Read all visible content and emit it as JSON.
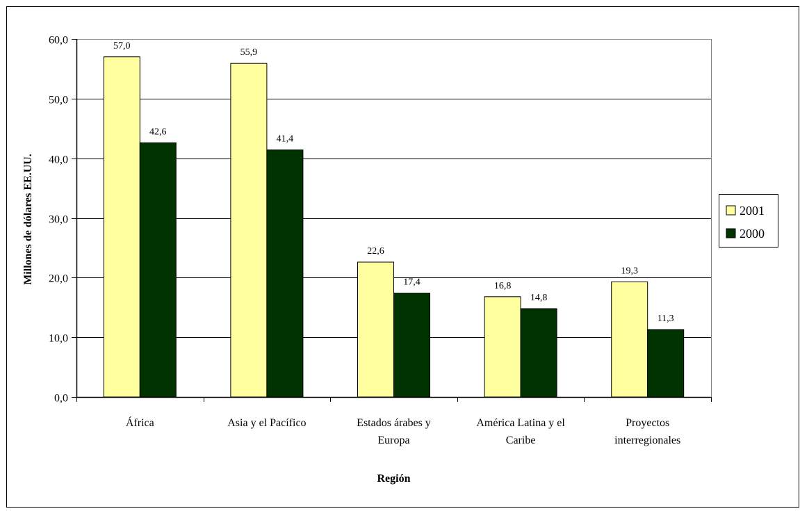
{
  "chart_data": {
    "type": "bar",
    "title": "",
    "xlabel": "Región",
    "ylabel": "Millones de dólares EE.UU.",
    "ylim": [
      0,
      60
    ],
    "yticks": [
      0,
      10,
      20,
      30,
      40,
      50,
      60
    ],
    "ytick_labels": [
      "0,0",
      "10,0",
      "20,0",
      "30,0",
      "40,0",
      "50,0",
      "60,0"
    ],
    "grid": true,
    "legend_position": "right",
    "categories": [
      [
        "África"
      ],
      [
        "Asia y el Pacífico"
      ],
      [
        "Estados árabes y",
        "Europa"
      ],
      [
        "América Latina y el",
        "Caribe"
      ],
      [
        "Proyectos",
        "interregionales"
      ]
    ],
    "series": [
      {
        "name": "2001",
        "color": "#ffffa0",
        "values": [
          57.0,
          55.9,
          22.6,
          16.8,
          19.3
        ],
        "labels": [
          "57,0",
          "55,9",
          "22,6",
          "16,8",
          "19,3"
        ]
      },
      {
        "name": "2000",
        "color": "#003300",
        "values": [
          42.6,
          41.4,
          17.4,
          14.8,
          11.3
        ],
        "labels": [
          "42,6",
          "41,4",
          "17,4",
          "14,8",
          "11,3"
        ]
      }
    ]
  }
}
